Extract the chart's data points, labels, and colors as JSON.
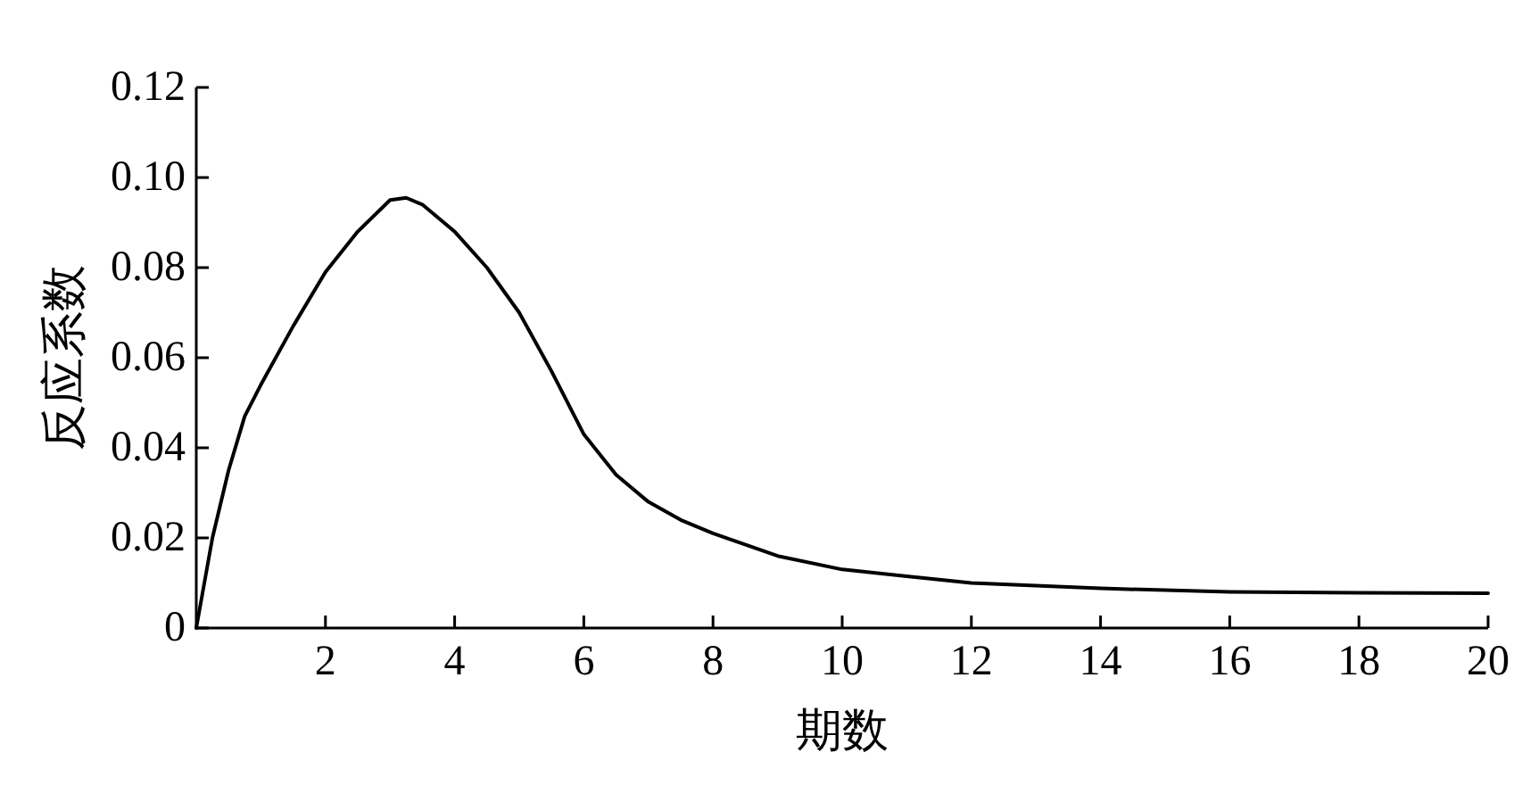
{
  "chart_data": {
    "type": "line",
    "xlabel": "期数",
    "ylabel": "反应系数",
    "x": [
      0,
      0.25,
      0.5,
      0.75,
      1,
      1.5,
      2,
      2.5,
      3,
      3.25,
      3.5,
      4,
      4.5,
      5,
      5.5,
      6,
      6.5,
      7,
      7.5,
      8,
      9,
      10,
      11,
      12,
      14,
      16,
      18,
      20
    ],
    "series": [
      {
        "color": "#000000",
        "values": [
          0,
          0.02,
          0.035,
          0.047,
          0.054,
          0.067,
          0.079,
          0.088,
          0.095,
          0.0955,
          0.094,
          0.088,
          0.08,
          0.07,
          0.057,
          0.043,
          0.034,
          0.028,
          0.024,
          0.021,
          0.016,
          0.013,
          0.0115,
          0.01,
          0.0088,
          0.008,
          0.0078,
          0.0077
        ]
      }
    ],
    "xlim": [
      0,
      20
    ],
    "ylim": [
      0,
      0.12
    ],
    "xticks": [
      2,
      4,
      6,
      8,
      10,
      12,
      14,
      16,
      18,
      20
    ],
    "yticks": [
      0,
      0.02,
      0.04,
      0.06,
      0.08,
      {
        "value": 0.1,
        "label": "0.10"
      },
      0.12
    ]
  }
}
